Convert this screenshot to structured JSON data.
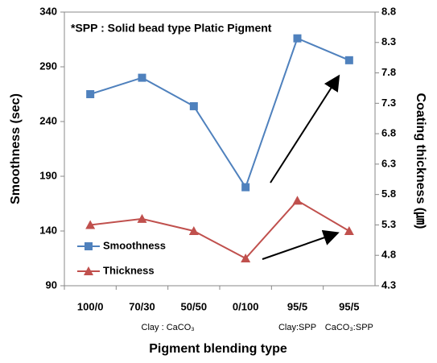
{
  "chart_data": {
    "type": "line",
    "annotation": "*SPP : Solid bead type Platic Pigment",
    "xlabel": "Pigment blending type",
    "ylabel": "Smoothness (sec)",
    "y2label": "Coating thickness (㎛)",
    "categories": [
      "100/0",
      "70/30",
      "50/50",
      "0/100",
      "95/5",
      "95/5"
    ],
    "group_labels": [
      "Clay : CaCO₃",
      "Clay:SPP",
      "CaCO₃:SPP"
    ],
    "series": [
      {
        "name": "Smoothness",
        "color": "#4f81bd",
        "marker": "square",
        "values": [
          265,
          280,
          254,
          180,
          316,
          296
        ]
      },
      {
        "name": "Thickness",
        "color": "#c0504d",
        "marker": "triangle",
        "axis": "y2",
        "values": [
          5.3,
          5.4,
          5.2,
          4.75,
          5.7,
          5.2
        ]
      }
    ],
    "ylim": [
      90,
      340
    ],
    "yticks": [
      90,
      140,
      190,
      240,
      290,
      340
    ],
    "y2lim": [
      4.3,
      8.8
    ],
    "y2ticks": [
      4.3,
      4.8,
      5.3,
      5.8,
      6.3,
      6.8,
      7.3,
      7.8,
      8.3,
      8.8
    ],
    "legend": "lower left"
  }
}
